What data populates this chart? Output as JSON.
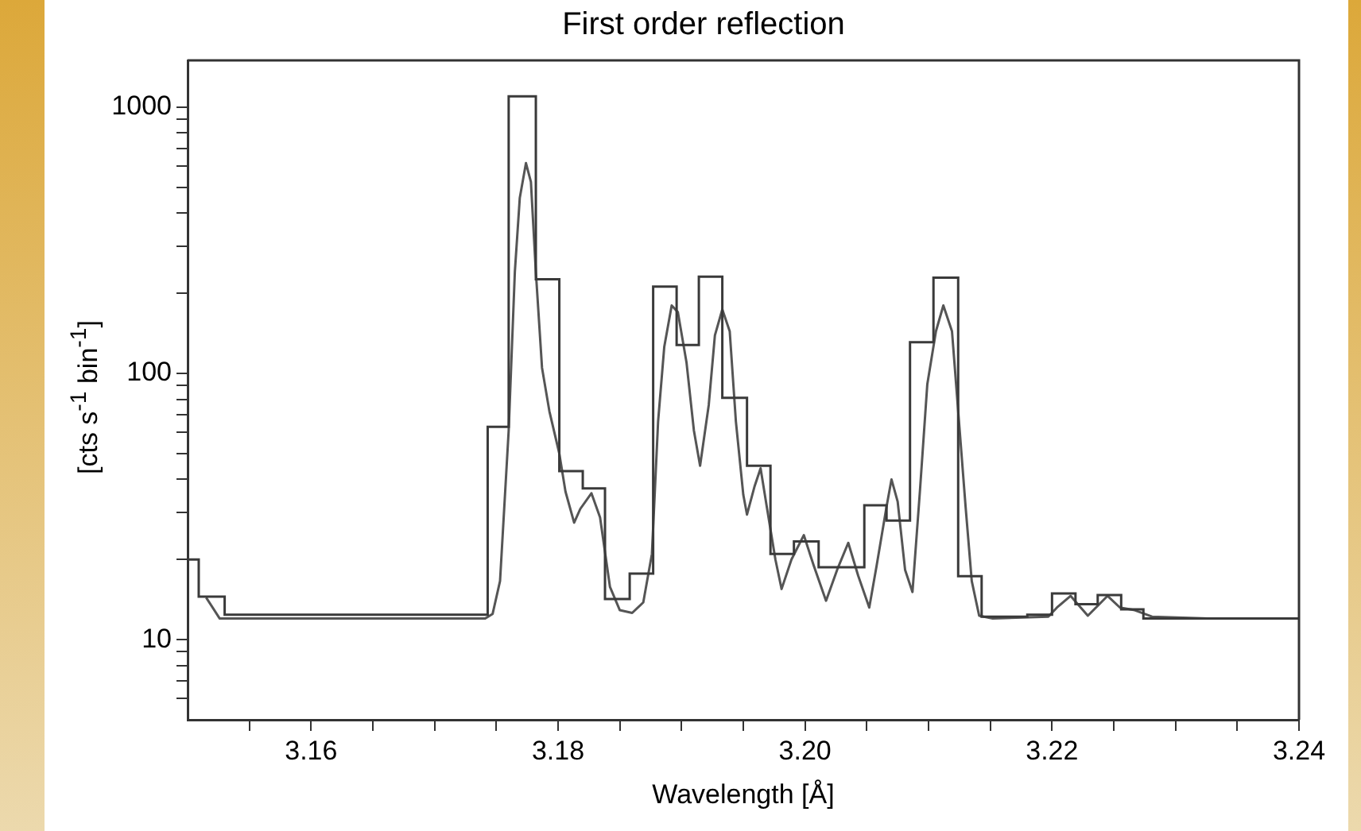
{
  "chart_data": {
    "type": "line",
    "title": "First order reflection",
    "xlabel": "Wavelength [Å]",
    "ylabel": "[cts s$^{-1}$ bin$^{-1}$]",
    "log": "y",
    "xlim": [
      3.15,
      3.24
    ],
    "ylim": [
      5,
      1500
    ],
    "xticks": [
      {
        "value": 3.155,
        "label": null
      },
      3.16,
      {
        "value": 3.165,
        "label": null
      },
      {
        "value": 3.17,
        "label": null
      },
      {
        "value": 3.175,
        "label": null
      },
      3.18,
      {
        "value": 3.185,
        "label": null
      },
      {
        "value": 3.19,
        "label": null
      },
      {
        "value": 3.195,
        "label": null
      },
      {
        "value": 3.2,
        "label": "3.20"
      },
      {
        "value": 3.205,
        "label": null
      },
      {
        "value": 3.21,
        "label": null
      },
      {
        "value": 3.215,
        "label": null
      },
      3.22,
      {
        "value": 3.225,
        "label": null
      },
      {
        "value": 3.23,
        "label": null
      },
      {
        "value": 3.235,
        "label": null
      },
      3.24
    ],
    "yticks": [
      {
        "value": 6,
        "label": null
      },
      {
        "value": 7,
        "label": null
      },
      {
        "value": 8,
        "label": null
      },
      {
        "value": 9,
        "label": null
      },
      10,
      {
        "value": 20,
        "label": null
      },
      {
        "value": 30,
        "label": null
      },
      {
        "value": 40,
        "label": null
      },
      {
        "value": 50,
        "label": null
      },
      {
        "value": 60,
        "label": null
      },
      {
        "value": 70,
        "label": null
      },
      {
        "value": 80,
        "label": null
      },
      {
        "value": 90,
        "label": null
      },
      100,
      {
        "value": 200,
        "label": null
      },
      {
        "value": 300,
        "label": null
      },
      {
        "value": 400,
        "label": null
      },
      {
        "value": 500,
        "label": null
      },
      {
        "value": 600,
        "label": null
      },
      {
        "value": 700,
        "label": null
      },
      {
        "value": 800,
        "label": null
      },
      {
        "value": 900,
        "label": null
      },
      1000
    ],
    "series": [
      {
        "type": "histogram",
        "color": "#3a3a3a",
        "bins": [
          3.15,
          3.1509,
          3.153,
          3.1743,
          3.176,
          3.1782,
          3.1801,
          3.182,
          3.1838,
          3.1858,
          3.1877,
          3.1896,
          3.1914,
          3.1933,
          3.1953,
          3.1972,
          3.1991,
          3.2011,
          3.2048,
          3.2066,
          3.2085,
          3.2104,
          3.2124,
          3.2143,
          3.218,
          3.22,
          3.2219,
          3.2237,
          3.2256,
          3.2274,
          3.24
        ],
        "values": [
          20,
          14.5,
          12.4,
          63,
          1100,
          226,
          43,
          37,
          14.2,
          17.7,
          212,
          128,
          231,
          81,
          45,
          21,
          23.4,
          18.7,
          32,
          28,
          131,
          229,
          17.3,
          12.2,
          12.4,
          14.9,
          13.6,
          14.7,
          13,
          12
        ]
      },
      {
        "type": "line",
        "color": "#555555",
        "x": [
          3.1515,
          3.1526,
          3.1741,
          3.1747,
          3.1753,
          3.176,
          3.1765,
          3.1769,
          3.1774,
          3.1778,
          3.1782,
          3.1787,
          3.1793,
          3.1801,
          3.1806,
          3.1813,
          3.1818,
          3.1827,
          3.1834,
          3.1842,
          3.185,
          3.186,
          3.1869,
          3.1876,
          3.1881,
          3.1886,
          3.1892,
          3.1897,
          3.1904,
          3.191,
          3.1915,
          3.1922,
          3.1927,
          3.1933,
          3.1939,
          3.1944,
          3.195,
          3.1953,
          3.1959,
          3.1964,
          3.1969,
          3.1976,
          3.1981,
          3.1989,
          3.1999,
          3.2007,
          3.2017,
          3.2026,
          3.2035,
          3.2043,
          3.2052,
          3.2058,
          3.2066,
          3.207,
          3.2075,
          3.2081,
          3.2087,
          3.2093,
          3.2099,
          3.2106,
          3.2112,
          3.2119,
          3.2125,
          3.213,
          3.2135,
          3.2141,
          3.2152,
          3.2197,
          3.2204,
          3.2215,
          3.2229,
          3.2245,
          3.2255,
          3.2267,
          3.2281,
          3.2326,
          3.24
        ],
        "values": [
          14.4,
          12,
          12,
          12.5,
          16.6,
          61,
          241,
          457,
          617,
          525,
          241,
          105,
          72,
          50,
          36,
          27.5,
          31,
          35.5,
          28.8,
          15.8,
          12.9,
          12.6,
          13.8,
          21,
          66,
          126,
          180,
          170,
          110,
          61,
          45,
          76,
          139,
          174,
          144,
          66,
          35,
          29.5,
          37.5,
          44,
          31.6,
          20,
          15.5,
          20,
          24.7,
          19,
          14,
          18.3,
          23.1,
          17.4,
          13.2,
          19,
          31.6,
          40,
          33,
          18.3,
          15.1,
          36,
          91,
          144,
          180,
          144,
          63,
          31.6,
          16.6,
          12.3,
          12,
          12.2,
          13.2,
          14.6,
          12.3,
          14.6,
          13.2,
          12.9,
          12.2,
          12,
          12
        ]
      }
    ]
  }
}
